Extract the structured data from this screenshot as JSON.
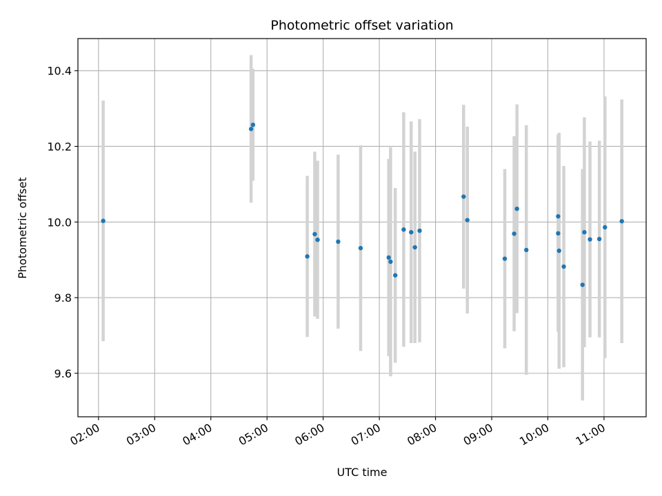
{
  "chart_data": {
    "type": "scatter",
    "title": "Photometric offset variation",
    "xlabel": "UTC time",
    "ylabel": "Photometric offset",
    "x_ticks": [
      "02:00",
      "03:00",
      "04:00",
      "05:00",
      "06:00",
      "07:00",
      "08:00",
      "09:00",
      "10:00",
      "11:00"
    ],
    "y_ticks": [
      "9.6",
      "9.8",
      "10.0",
      "10.2",
      "10.4"
    ],
    "xlim": [
      "01:38",
      "11:45"
    ],
    "ylim": [
      9.485,
      10.485
    ],
    "grid": true,
    "marker_color": "#1f77b4",
    "errorbar_color": "#d3d3d3",
    "points": [
      {
        "x": "02:05",
        "y": 10.003,
        "err": 0.318
      },
      {
        "x": "04:43",
        "y": 10.246,
        "err": 0.195
      },
      {
        "x": "04:45",
        "y": 10.257,
        "err": 0.148
      },
      {
        "x": "05:43",
        "y": 9.909,
        "err": 0.213
      },
      {
        "x": "05:51",
        "y": 9.968,
        "err": 0.218
      },
      {
        "x": "05:54",
        "y": 9.953,
        "err": 0.209
      },
      {
        "x": "06:16",
        "y": 9.948,
        "err": 0.23
      },
      {
        "x": "06:40",
        "y": 9.931,
        "err": 0.272
      },
      {
        "x": "07:10",
        "y": 9.906,
        "err": 0.261
      },
      {
        "x": "07:12",
        "y": 9.895,
        "err": 0.303
      },
      {
        "x": "07:17",
        "y": 9.859,
        "err": 0.231
      },
      {
        "x": "07:26",
        "y": 9.98,
        "err": 0.31
      },
      {
        "x": "07:34",
        "y": 9.973,
        "err": 0.293
      },
      {
        "x": "07:38",
        "y": 9.933,
        "err": 0.253
      },
      {
        "x": "07:43",
        "y": 9.977,
        "err": 0.295
      },
      {
        "x": "08:30",
        "y": 10.067,
        "err": 0.243
      },
      {
        "x": "08:34",
        "y": 10.005,
        "err": 0.247
      },
      {
        "x": "09:14",
        "y": 9.903,
        "err": 0.237
      },
      {
        "x": "09:24",
        "y": 9.969,
        "err": 0.258
      },
      {
        "x": "09:27",
        "y": 10.035,
        "err": 0.276
      },
      {
        "x": "09:37",
        "y": 9.926,
        "err": 0.33
      },
      {
        "x": "10:11",
        "y": 10.015,
        "err": 0.216
      },
      {
        "x": "10:11",
        "y": 9.97,
        "err": 0.26
      },
      {
        "x": "10:12",
        "y": 9.924,
        "err": 0.312
      },
      {
        "x": "10:17",
        "y": 9.882,
        "err": 0.266
      },
      {
        "x": "10:37",
        "y": 9.834,
        "err": 0.306
      },
      {
        "x": "10:39",
        "y": 9.973,
        "err": 0.304
      },
      {
        "x": "10:45",
        "y": 9.954,
        "err": 0.259
      },
      {
        "x": "10:55",
        "y": 9.955,
        "err": 0.26
      },
      {
        "x": "11:01",
        "y": 9.986,
        "err": 0.346
      },
      {
        "x": "11:19",
        "y": 10.002,
        "err": 0.322
      }
    ]
  }
}
